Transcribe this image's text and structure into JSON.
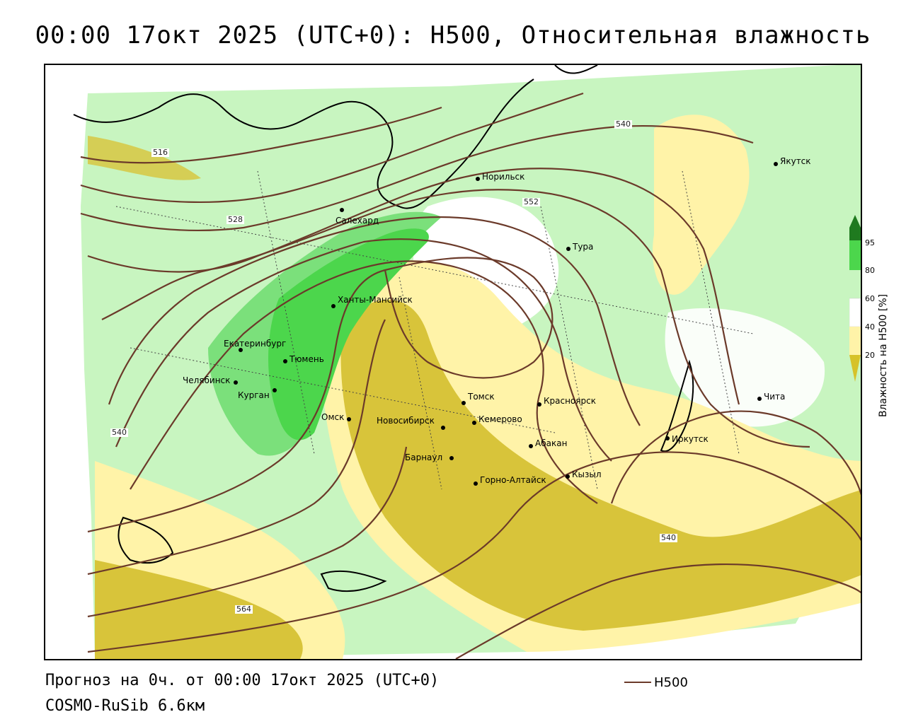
{
  "title": "00:00 17окт 2025 (UTC+0): H500, Относительная влажность",
  "footer": {
    "forecast": "Прогноз на 0ч. от 00:00 17окт 2025 (UTC+0)",
    "model": "COSMO-RuSib 6.6км",
    "line_legend": "H500"
  },
  "colorbar": {
    "title": "Влажность на H500 [%]",
    "ticks": [
      "95",
      "80",
      "60",
      "40",
      "20"
    ],
    "colors": {
      "c95": "#1f7a1f",
      "c80": "#4cd64c",
      "c60": "#c8f5c0",
      "c40": "#ffffff",
      "c20": "#fff3a8",
      "c0": "#d6c22a"
    }
  },
  "contours": {
    "color": "#6b3a2a",
    "labels": [
      "516",
      "528",
      "540",
      "552",
      "540",
      "540",
      "564"
    ]
  },
  "cities": [
    {
      "name": "Якутск"
    },
    {
      "name": "Норильск"
    },
    {
      "name": "Салехард"
    },
    {
      "name": "Тура"
    },
    {
      "name": "Ханты-Мансийск"
    },
    {
      "name": "Екатеринбург"
    },
    {
      "name": "Тюмень"
    },
    {
      "name": "Челябинск"
    },
    {
      "name": "Курган"
    },
    {
      "name": "Омск"
    },
    {
      "name": "Новосибирск"
    },
    {
      "name": "Томск"
    },
    {
      "name": "Кемерово"
    },
    {
      "name": "Красноярск"
    },
    {
      "name": "Абакан"
    },
    {
      "name": "Барнаул"
    },
    {
      "name": "Горно-Алтайск"
    },
    {
      "name": "Кызыл"
    },
    {
      "name": "Иркутск"
    },
    {
      "name": "Чита"
    }
  ]
}
